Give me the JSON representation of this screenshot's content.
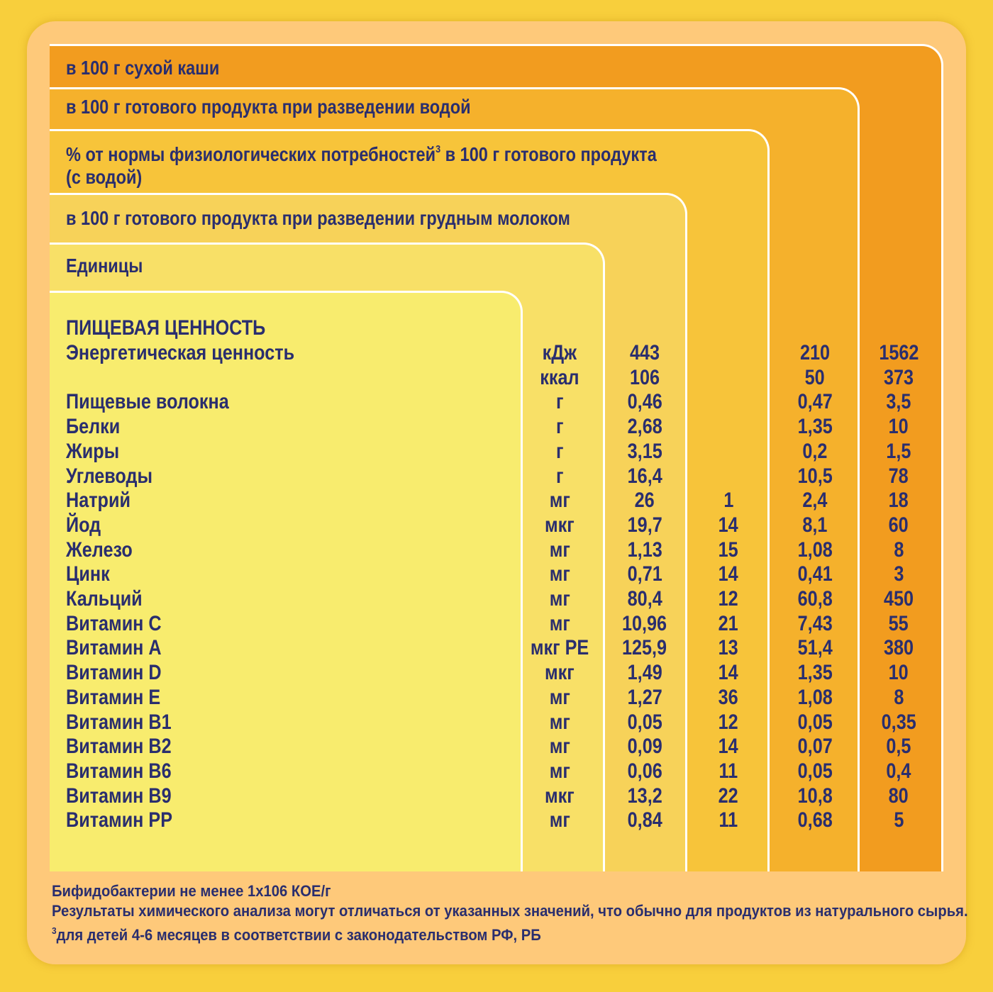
{
  "headers": {
    "dry": "в 100 г сухой каши",
    "water": "в 100 г готового продукта при разведении водой",
    "norm_prefix": "% от нормы физиологических потребностей",
    "norm_sup": "3",
    "norm_suffix": " в 100 г готового продукта",
    "norm_line2": "(с водой)",
    "milk": "в 100 г готового продукта при разведении грудным молоком",
    "units": "Единицы"
  },
  "section_title": "ПИЩЕВАЯ ЦЕННОСТЬ",
  "rows": [
    {
      "name": "Энергетическая ценность",
      "unit": "кДж",
      "milk": "443",
      "norm": "",
      "water": "210",
      "dry": "1562"
    },
    {
      "name": "",
      "unit": "ккал",
      "milk": "106",
      "norm": "",
      "water": "50",
      "dry": "373"
    },
    {
      "name": "Пищевые волокна",
      "unit": "г",
      "milk": "0,46",
      "norm": "",
      "water": "0,47",
      "dry": "3,5"
    },
    {
      "name": "Белки",
      "unit": "г",
      "milk": "2,68",
      "norm": "",
      "water": "1,35",
      "dry": "10"
    },
    {
      "name": "Жиры",
      "unit": "г",
      "milk": "3,15",
      "norm": "",
      "water": "0,2",
      "dry": "1,5"
    },
    {
      "name": "Углеводы",
      "unit": "г",
      "milk": "16,4",
      "norm": "",
      "water": "10,5",
      "dry": "78"
    },
    {
      "name": "Натрий",
      "unit": "мг",
      "milk": "26",
      "norm": "1",
      "water": "2,4",
      "dry": "18"
    },
    {
      "name": "Йод",
      "unit": "мкг",
      "milk": "19,7",
      "norm": "14",
      "water": "8,1",
      "dry": "60"
    },
    {
      "name": "Железо",
      "unit": "мг",
      "milk": "1,13",
      "norm": "15",
      "water": "1,08",
      "dry": "8"
    },
    {
      "name": "Цинк",
      "unit": "мг",
      "milk": "0,71",
      "norm": "14",
      "water": "0,41",
      "dry": "3"
    },
    {
      "name": "Кальций",
      "unit": "мг",
      "milk": "80,4",
      "norm": "12",
      "water": "60,8",
      "dry": "450"
    },
    {
      "name": "Витамин  C",
      "unit": "мг",
      "milk": "10,96",
      "norm": "21",
      "water": "7,43",
      "dry": "55"
    },
    {
      "name": "Витамин  A",
      "unit": "мкг РЕ",
      "milk": "125,9",
      "norm": "13",
      "water": "51,4",
      "dry": "380"
    },
    {
      "name": "Витамин  D",
      "unit": "мкг",
      "milk": "1,49",
      "norm": "14",
      "water": "1,35",
      "dry": "10"
    },
    {
      "name": "Витамин  E",
      "unit": "мг",
      "milk": "1,27",
      "norm": "36",
      "water": "1,08",
      "dry": "8"
    },
    {
      "name": "Витамин  B1",
      "unit": "мг",
      "milk": "0,05",
      "norm": "12",
      "water": "0,05",
      "dry": "0,35"
    },
    {
      "name": "Витамин  B2",
      "unit": "мг",
      "milk": "0,09",
      "norm": "14",
      "water": "0,07",
      "dry": "0,5"
    },
    {
      "name": "Витамин  B6",
      "unit": "мг",
      "milk": "0,06",
      "norm": "11",
      "water": "0,05",
      "dry": "0,4"
    },
    {
      "name": "Витамин  B9",
      "unit": "мкг",
      "milk": "13,2",
      "norm": "22",
      "water": "10,8",
      "dry": "80"
    },
    {
      "name": "Витамин  PP",
      "unit": "мг",
      "milk": "0,84",
      "norm": "11",
      "water": "0,68",
      "dry": "5"
    }
  ],
  "footer": {
    "line1": "Бифидобактерии не менее 1x106 КОЕ/г",
    "line2": "Результаты химического анализа могут отличаться от указанных значений, что обычно для продуктов из натурального сырья.",
    "line3_sup": "3",
    "line3": "для детей 4-6 месяцев в соответствии с законодательством РФ, РБ"
  },
  "colors": {
    "background": "#f8cf3c",
    "card": "#fec97a",
    "text": "#2a2e6e",
    "panel_dry": "#f29c1f",
    "panel_water": "#f5b12c",
    "panel_norm": "#f7c43a",
    "panel_milk": "#f7d259",
    "panel_units": "#f8e067",
    "panel_names": "#f8ec6e"
  }
}
